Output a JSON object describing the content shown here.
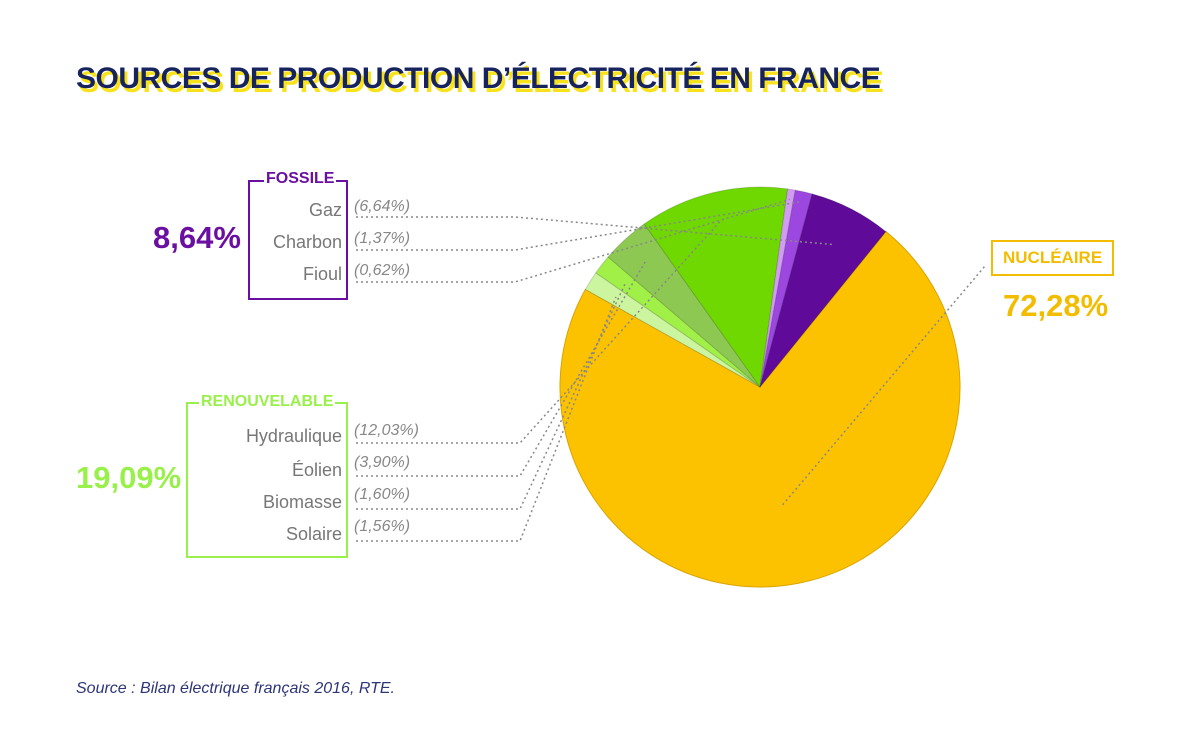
{
  "title": "SOURCES DE PRODUCTION D’ÉLECTRICITÉ EN FRANCE",
  "source_note": "Source : Bilan électrique français 2016, RTE.",
  "colors": {
    "title": "#17235c",
    "title_shadow": "#f7e21b",
    "fossile": "#6a0fa0",
    "renouvelable": "#99f04a",
    "nucleaire": "#f2bd00"
  },
  "groups": {
    "fossile": {
      "title": "FOSSILE",
      "total": "8,64%",
      "items": [
        {
          "name": "Gaz",
          "pct": "(6,64%)"
        },
        {
          "name": "Charbon",
          "pct": "(1,37%)"
        },
        {
          "name": "Fioul",
          "pct": "(0,62%)"
        }
      ]
    },
    "renouvelable": {
      "title": "RENOUVELABLE",
      "total": "19,09%",
      "items": [
        {
          "name": "Hydraulique",
          "pct": "(12,03%)"
        },
        {
          "name": "Éolien",
          "pct": "(3,90%)"
        },
        {
          "name": "Biomasse",
          "pct": "(1,60%)"
        },
        {
          "name": "Solaire",
          "pct": "(1,56%)"
        }
      ]
    },
    "nucleaire": {
      "title": "NUCLÉAIRE",
      "total": "72,28%"
    }
  },
  "chart_data": {
    "type": "pie",
    "title": "SOURCES DE PRODUCTION D’ÉLECTRICITÉ EN FRANCE",
    "slices": [
      {
        "label": "Nucléaire",
        "value": 72.28,
        "color": "#fcc200"
      },
      {
        "label": "Solaire",
        "value": 1.56,
        "color": "#ccf5a0"
      },
      {
        "label": "Biomasse",
        "value": 1.6,
        "color": "#a1f047"
      },
      {
        "label": "Éolien",
        "value": 3.9,
        "color": "#8dc952"
      },
      {
        "label": "Hydraulique",
        "value": 12.03,
        "color": "#6ed800"
      },
      {
        "label": "Fioul",
        "value": 0.62,
        "color": "#d39cf3"
      },
      {
        "label": "Charbon",
        "value": 1.37,
        "color": "#9b47e0"
      },
      {
        "label": "Gaz",
        "value": 6.64,
        "color": "#5f0a98"
      }
    ]
  }
}
